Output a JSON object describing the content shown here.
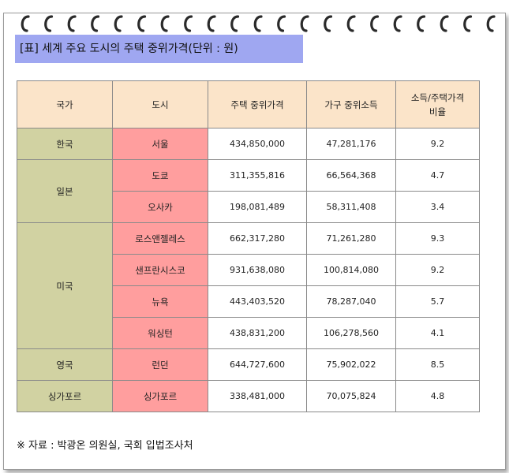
{
  "title": "[표] 세계 주요 도시의 주택 중위가격(단위 : 원)",
  "headers": [
    "국가",
    "도시",
    "주택 중위가격",
    "가구 중위소득",
    "소득/주택가격 비율"
  ],
  "countries": [
    "한국",
    "일본",
    "미국",
    "영국",
    "싱가포르"
  ],
  "rows": [
    {
      "city": "서울",
      "price": "434,850,000",
      "income": "47,281,176",
      "ratio": "9.2"
    },
    {
      "city": "도쿄",
      "price": "311,355,816",
      "income": "66,564,368",
      "ratio": "4.7"
    },
    {
      "city": "오사카",
      "price": "198,081,489",
      "income": "58,311,408",
      "ratio": "3.4"
    },
    {
      "city": "로스앤젤레스",
      "price": "662,317,280",
      "income": "71,261,280",
      "ratio": "9.3"
    },
    {
      "city": "샌프란시스코",
      "price": "931,638,080",
      "income": "100,814,080",
      "ratio": "9.2"
    },
    {
      "city": "뉴욕",
      "price": "443,403,520",
      "income": "78,287,040",
      "ratio": "5.7"
    },
    {
      "city": "워싱턴",
      "price": "438,831,200",
      "income": "106,278,560",
      "ratio": "4.1"
    },
    {
      "city": "런던",
      "price": "644,727,600",
      "income": "75,902,022",
      "ratio": "8.5"
    },
    {
      "city": "싱가포르",
      "price": "338,481,000",
      "income": "70,075,824",
      "ratio": "4.8"
    }
  ],
  "source": "※ 자료 : 박광온 의원실, 국회 입법조사처"
}
